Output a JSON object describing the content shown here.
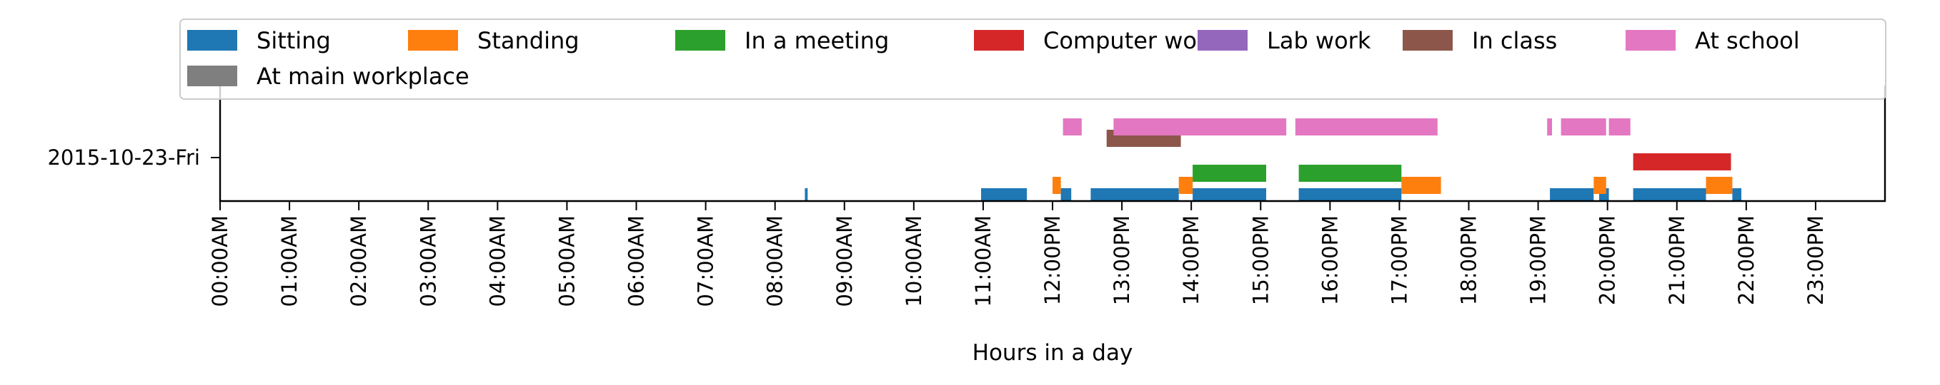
{
  "chart_data": {
    "type": "bar",
    "orientation": "horizontal-timeline",
    "title": "",
    "xlabel": "Hours in a day",
    "ylabel": "",
    "xlim": [
      0,
      24
    ],
    "x_tick_labels": [
      "00:00AM",
      "01:00AM",
      "02:00AM",
      "03:00AM",
      "04:00AM",
      "05:00AM",
      "06:00AM",
      "07:00AM",
      "08:00AM",
      "09:00AM",
      "10:00AM",
      "11:00AM",
      "12:00PM",
      "13:00PM",
      "14:00PM",
      "15:00PM",
      "16:00PM",
      "17:00PM",
      "18:00PM",
      "19:00PM",
      "20:00PM",
      "21:00PM",
      "22:00PM",
      "23:00PM"
    ],
    "y_tick_labels": [
      "2015-10-23-Fri"
    ],
    "legend_placement": "top, above plot",
    "grid": false,
    "series": [
      {
        "name": "Sitting",
        "color": "#1f77b4",
        "intervals": [
          [
            8.43,
            8.47
          ],
          [
            10.97,
            11.63
          ],
          [
            12.12,
            12.27
          ],
          [
            12.55,
            13.82
          ],
          [
            14.02,
            15.08
          ],
          [
            15.55,
            17.03
          ],
          [
            19.17,
            19.8
          ],
          [
            19.88,
            20.02
          ],
          [
            20.37,
            21.42
          ],
          [
            21.8,
            21.93
          ]
        ]
      },
      {
        "name": "Standing",
        "color": "#ff7f0e",
        "intervals": [
          [
            12.0,
            12.12
          ],
          [
            13.82,
            14.02
          ],
          [
            17.03,
            17.6
          ],
          [
            19.8,
            19.98
          ],
          [
            21.42,
            21.8
          ]
        ]
      },
      {
        "name": "In a meeting",
        "color": "#2ca02c",
        "intervals": [
          [
            14.02,
            15.08
          ],
          [
            15.55,
            17.03
          ]
        ]
      },
      {
        "name": "Computer work",
        "color": "#d62728",
        "intervals": [
          [
            20.37,
            21.78
          ]
        ]
      },
      {
        "name": "Lab work",
        "color": "#9467bd",
        "intervals": []
      },
      {
        "name": "In class",
        "color": "#8c564b",
        "intervals": [
          [
            12.78,
            13.85
          ]
        ]
      },
      {
        "name": "At school",
        "color": "#e377c2",
        "intervals": [
          [
            12.15,
            12.42
          ],
          [
            12.88,
            15.37
          ],
          [
            15.5,
            17.55
          ],
          [
            19.13,
            19.2
          ],
          [
            19.33,
            19.98
          ],
          [
            20.02,
            20.33
          ]
        ]
      },
      {
        "name": "At main workplace",
        "color": "#7f7f7f",
        "intervals": []
      }
    ]
  }
}
